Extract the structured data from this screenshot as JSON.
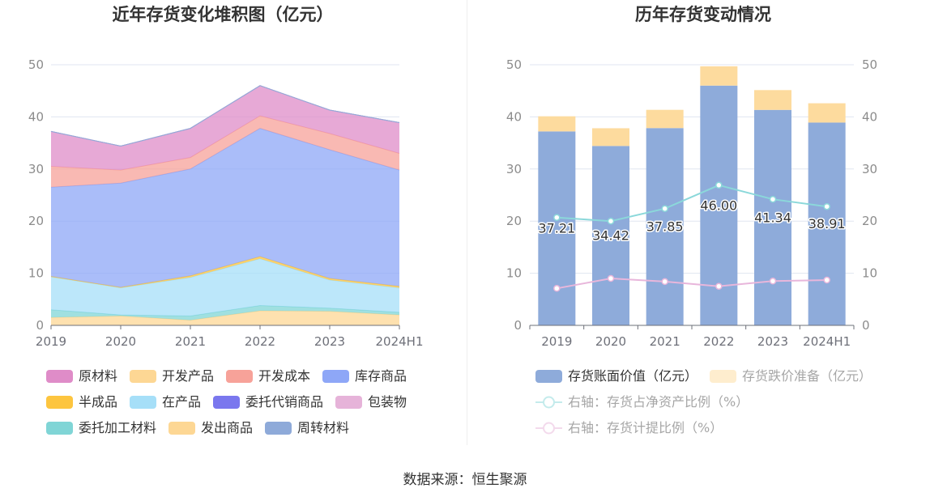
{
  "source": "数据来源：恒生聚源",
  "chart_data": [
    {
      "type": "area",
      "stacked": true,
      "title": "近年存货变化堆积图（亿元）",
      "categories": [
        "2019",
        "2020",
        "2021",
        "2022",
        "2023",
        "2024H1"
      ],
      "ylim": [
        0,
        50
      ],
      "yticks": [
        0,
        10,
        20,
        30,
        40,
        50
      ],
      "grid": true,
      "legend": "bottom",
      "series": [
        {
          "name": "原材料",
          "color": "#df8cc8",
          "values": [
            6.7,
            4.6,
            5.6,
            5.8,
            4.5,
            5.9
          ]
        },
        {
          "name": "开发产品",
          "color": "#fdd794",
          "values": [
            0,
            0,
            0,
            0,
            0,
            0
          ]
        },
        {
          "name": "开发成本",
          "color": "#f7a299",
          "values": [
            4.0,
            2.5,
            2.2,
            2.4,
            3.1,
            3.2
          ]
        },
        {
          "name": "库存商品",
          "color": "#8ea7f7",
          "values": [
            17.1,
            20.0,
            20.5,
            24.6,
            24.7,
            22.3
          ]
        },
        {
          "name": "半成品",
          "color": "#fdc53f",
          "values": [
            0.1,
            0.1,
            0.3,
            0.4,
            0.3,
            0.3
          ]
        },
        {
          "name": "在产品",
          "color": "#a6dff8",
          "values": [
            6.3,
            5.2,
            7.4,
            9.0,
            5.4,
            4.7
          ]
        },
        {
          "name": "委托代销商品",
          "color": "#7a77ee",
          "values": [
            0,
            0,
            0,
            0,
            0,
            0
          ]
        },
        {
          "name": "包装物",
          "color": "#e6b3d9",
          "values": [
            0,
            0,
            0,
            0,
            0,
            0
          ]
        },
        {
          "name": "委托加工材料",
          "color": "#80d5d6",
          "values": [
            1.5,
            0.2,
            0.8,
            1.0,
            0.6,
            0.5
          ]
        },
        {
          "name": "发出商品",
          "color": "#fdd794",
          "values": [
            1.5,
            1.8,
            1.0,
            2.8,
            2.7,
            2.0
          ]
        },
        {
          "name": "周转材料",
          "color": "#8eaad9",
          "values": [
            0,
            0,
            0,
            0,
            0,
            0
          ]
        }
      ]
    },
    {
      "type": "bar",
      "stacked": true,
      "title": "历年存货变动情况",
      "categories": [
        "2019",
        "2020",
        "2021",
        "2022",
        "2023",
        "2024H1"
      ],
      "ylim": [
        0,
        50
      ],
      "yticks": [
        0,
        10,
        20,
        30,
        40,
        50
      ],
      "y2lim": [
        0,
        50
      ],
      "y2ticks": [
        0,
        10,
        20,
        30,
        40,
        50
      ],
      "grid": true,
      "legend": "bottom",
      "series": [
        {
          "name": "存货账面价值（亿元）",
          "type": "bar",
          "axis": "left",
          "color": "#8eabda",
          "data_labels": true,
          "values": [
            37.21,
            34.42,
            37.85,
            46.0,
            41.34,
            38.91
          ]
        },
        {
          "name": "存货跌价准备（亿元）",
          "type": "bar",
          "axis": "left",
          "color": "#fddb9e",
          "values": [
            2.9,
            3.4,
            3.5,
            3.7,
            3.8,
            3.7
          ]
        },
        {
          "name": "右轴：存货占净资产比例（%）",
          "type": "line",
          "axis": "right",
          "color": "#8bd8da",
          "values": [
            20.7,
            20.0,
            22.4,
            26.9,
            24.2,
            22.8
          ]
        },
        {
          "name": "右轴：存货计提比例（%）",
          "type": "line",
          "axis": "right",
          "color": "#e8b6db",
          "values": [
            7.1,
            9.0,
            8.4,
            7.5,
            8.5,
            8.7
          ]
        }
      ]
    }
  ]
}
